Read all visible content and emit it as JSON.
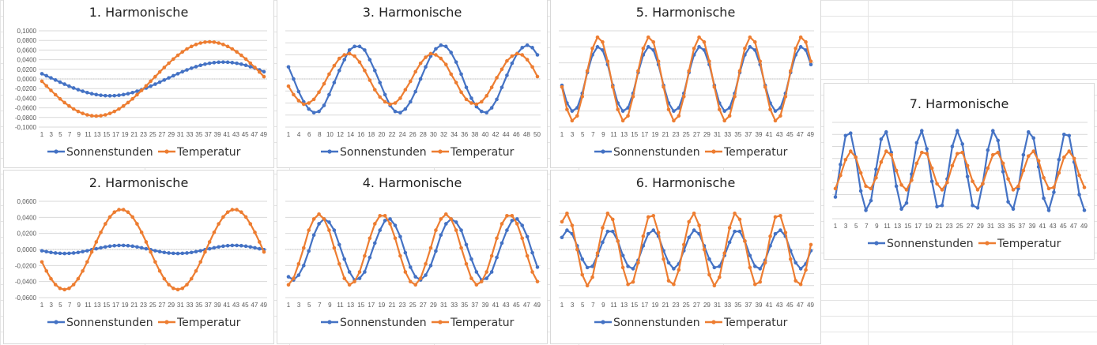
{
  "colors": {
    "series_1": "#4472C4",
    "series_2": "#ED7D31",
    "grid": "#d9d9d9",
    "axis_text": "#595959"
  },
  "chart_data": [
    {
      "type": "line",
      "title": "1. Harmonische",
      "ylim": [
        -0.1,
        0.1
      ],
      "y_tick_step": 0.02,
      "y_tick_labels": [
        "0,1000",
        "0,0800",
        "0,0600",
        "0,0400",
        "0,0200",
        "0,0000",
        "-0,0200",
        "-0,0400",
        "-0,0600",
        "-0,0800",
        "-0,1000"
      ],
      "x_tick_labels": [
        "1",
        "3",
        "5",
        "7",
        "9",
        "11",
        "13",
        "15",
        "17",
        "19",
        "21",
        "23",
        "25",
        "27",
        "29",
        "31",
        "33",
        "35",
        "37",
        "39",
        "41",
        "43",
        "45",
        "47",
        "49"
      ],
      "grid": true,
      "legend": "bottom",
      "series": [
        {
          "name": "Sonnenstunden",
          "values": [
            0.0108,
            0.0066,
            0.0022,
            -0.0022,
            -0.0066,
            -0.0108,
            -0.0149,
            -0.0188,
            -0.0223,
            -0.0255,
            -0.0283,
            -0.0307,
            -0.0325,
            -0.0339,
            -0.0347,
            -0.035,
            -0.0347,
            -0.0339,
            -0.0325,
            -0.0307,
            -0.0283,
            -0.0255,
            -0.0223,
            -0.0188,
            -0.0149,
            -0.0108,
            -0.0066,
            -0.0022,
            0.0022,
            0.0066,
            0.0108,
            0.0149,
            0.0188,
            0.0223,
            0.0255,
            0.0283,
            0.0307,
            0.0325,
            0.0339,
            0.0347,
            0.035,
            0.0347,
            0.0339,
            0.0325,
            0.0307,
            0.0283,
            0.0255,
            0.0223,
            0.0188,
            0.0149
          ]
        },
        {
          "name": "Temperatur",
          "values": [
            -0.0048,
            -0.0144,
            -0.0238,
            -0.0328,
            -0.0413,
            -0.0491,
            -0.0561,
            -0.0623,
            -0.0675,
            -0.0716,
            -0.0746,
            -0.0764,
            -0.077,
            -0.0764,
            -0.0746,
            -0.0716,
            -0.0675,
            -0.0623,
            -0.0561,
            -0.0491,
            -0.0413,
            -0.0328,
            -0.0238,
            -0.0144,
            -0.0048,
            0.0048,
            0.0144,
            0.0238,
            0.0328,
            0.0413,
            0.0491,
            0.0561,
            0.0623,
            0.0675,
            0.0716,
            0.0746,
            0.0764,
            0.077,
            0.0764,
            0.0746,
            0.0716,
            0.0675,
            0.0623,
            0.0561,
            0.0491,
            0.0413,
            0.0328,
            0.0238,
            0.0144,
            0.0048
          ]
        }
      ]
    },
    {
      "type": "line",
      "title": "2. Harmonische",
      "ylim": [
        -0.06,
        0.06
      ],
      "y_tick_step": 0.02,
      "y_tick_labels": [
        "0,0600",
        "0,0400",
        "0,0200",
        "0,0000",
        "-0,0200",
        "-0,0400",
        "-0,0600"
      ],
      "x_tick_labels": [
        "1",
        "3",
        "5",
        "7",
        "9",
        "11",
        "13",
        "15",
        "17",
        "19",
        "21",
        "23",
        "25",
        "27",
        "29",
        "31",
        "33",
        "35",
        "37",
        "39",
        "41",
        "43",
        "45",
        "47",
        "49"
      ],
      "grid": true,
      "legend": "bottom",
      "series": [
        {
          "name": "Sonnenstunden",
          "values": [
            -0.0016,
            -0.0027,
            -0.0037,
            -0.0044,
            -0.0048,
            -0.005,
            -0.0048,
            -0.0044,
            -0.0037,
            -0.0027,
            -0.0016,
            -0.0003,
            0.0009,
            0.0021,
            0.0032,
            0.0041,
            0.0047,
            0.005,
            0.005,
            0.0047,
            0.0041,
            0.0032,
            0.0021,
            0.0009,
            -0.0003,
            -0.0016,
            -0.0027,
            -0.0037,
            -0.0044,
            -0.0048,
            -0.005,
            -0.0048,
            -0.0044,
            -0.0037,
            -0.0027,
            -0.0016,
            -0.0003,
            0.0009,
            0.0021,
            0.0032,
            0.0041,
            0.0047,
            0.005,
            0.005,
            0.0047,
            0.0041,
            0.0032,
            0.0021,
            0.0009,
            -0.0003
          ]
        },
        {
          "name": "Temperatur",
          "values": [
            -0.0155,
            -0.0268,
            -0.0365,
            -0.0438,
            -0.0484,
            -0.05,
            -0.0484,
            -0.0438,
            -0.0365,
            -0.0268,
            -0.0155,
            -0.0031,
            0.0094,
            0.0213,
            0.0319,
            0.0405,
            0.0465,
            0.0496,
            0.0496,
            0.0465,
            0.0405,
            0.0319,
            0.0213,
            0.0094,
            -0.0031,
            -0.0155,
            -0.0268,
            -0.0365,
            -0.0438,
            -0.0484,
            -0.05,
            -0.0484,
            -0.0438,
            -0.0365,
            -0.0268,
            -0.0155,
            -0.0031,
            0.0094,
            0.0213,
            0.0319,
            0.0405,
            0.0465,
            0.0496,
            0.0496,
            0.0465,
            0.0405,
            0.0319,
            0.0213,
            0.0094,
            -0.0031
          ]
        }
      ]
    },
    {
      "type": "line",
      "title": "3. Harmonische",
      "ylim": [
        -4,
        4
      ],
      "y_tick_step": 1,
      "y_tick_labels": [],
      "x_tick_labels": [
        "1",
        "4",
        "6",
        "8",
        "10",
        "12",
        "14",
        "16",
        "18",
        "20",
        "22",
        "24",
        "26",
        "28",
        "30",
        "32",
        "34",
        "36",
        "38",
        "40",
        "42",
        "44",
        "46",
        "48",
        "50"
      ],
      "grid": true,
      "legend": "bottom",
      "series": [
        {
          "name": "Sonnenstunden",
          "values": [
            1.0,
            0.0,
            -1.05,
            -1.9,
            -2.5,
            -2.8,
            -2.7,
            -2.2,
            -1.3,
            -0.3,
            0.7,
            1.6,
            2.4,
            2.7,
            2.7,
            2.4,
            1.6,
            0.7,
            -0.3,
            -1.3,
            -2.2,
            -2.7,
            -2.8,
            -2.5,
            -1.9,
            -1.05,
            0.0,
            1.0,
            1.9,
            2.5,
            2.8,
            2.7,
            2.2,
            1.4,
            0.4,
            -0.7,
            -1.6,
            -2.3,
            -2.7,
            -2.8,
            -2.4,
            -1.7,
            -0.7,
            0.3,
            1.3,
            2.1,
            2.6,
            2.8,
            2.6,
            2.0
          ]
        },
        {
          "name": "Temperatur",
          "values": [
            -0.6,
            -1.3,
            -1.8,
            -2.1,
            -2.0,
            -1.7,
            -1.1,
            -0.4,
            0.4,
            1.1,
            1.7,
            2.0,
            2.1,
            1.9,
            1.4,
            0.7,
            -0.1,
            -0.9,
            -1.5,
            -1.9,
            -2.1,
            -2.0,
            -1.6,
            -0.9,
            -0.2,
            0.6,
            1.3,
            1.8,
            2.1,
            2.0,
            1.7,
            1.2,
            0.4,
            -0.3,
            -1.1,
            -1.7,
            -2.0,
            -2.1,
            -1.9,
            -1.4,
            -0.7,
            0.1,
            0.8,
            1.5,
            1.9,
            2.1,
            2.0,
            1.6,
            1.0,
            0.2
          ]
        }
      ]
    },
    {
      "type": "line",
      "title": "4. Harmonische",
      "ylim": [
        -3,
        3
      ],
      "y_tick_step": 1,
      "y_tick_labels": [],
      "x_tick_labels": [
        "1",
        "3",
        "5",
        "7",
        "9",
        "11",
        "13",
        "15",
        "17",
        "19",
        "21",
        "23",
        "25",
        "27",
        "29",
        "31",
        "33",
        "35",
        "37",
        "39",
        "41",
        "43",
        "45",
        "47",
        "49"
      ],
      "grid": true,
      "legend": "bottom",
      "series": [
        {
          "name": "Sonnenstunden",
          "values": [
            -1.7,
            -1.9,
            -1.6,
            -1.0,
            -0.1,
            0.9,
            1.6,
            1.9,
            1.7,
            1.2,
            0.3,
            -0.6,
            -1.4,
            -1.9,
            -1.8,
            -1.4,
            -0.5,
            0.4,
            1.2,
            1.8,
            1.9,
            1.5,
            0.8,
            -0.2,
            -1.1,
            -1.7,
            -1.9,
            -1.6,
            -1.0,
            -0.1,
            0.9,
            1.6,
            1.9,
            1.7,
            1.2,
            0.3,
            -0.6,
            -1.4,
            -1.9,
            -1.8,
            -1.4,
            -0.5,
            0.4,
            1.2,
            1.8,
            1.9,
            1.5,
            0.8,
            -0.2,
            -1.1
          ]
        },
        {
          "name": "Temperatur",
          "values": [
            -2.2,
            -1.8,
            -0.9,
            0.1,
            1.2,
            1.9,
            2.2,
            1.9,
            1.2,
            0.1,
            -0.9,
            -1.8,
            -2.2,
            -2.0,
            -1.4,
            -0.4,
            0.7,
            1.6,
            2.1,
            2.1,
            1.6,
            0.7,
            -0.4,
            -1.4,
            -2.0,
            -2.2,
            -1.8,
            -0.9,
            0.1,
            1.2,
            1.9,
            2.2,
            1.9,
            1.2,
            0.1,
            -0.9,
            -1.8,
            -2.2,
            -2.0,
            -1.4,
            -0.4,
            0.7,
            1.6,
            2.1,
            2.1,
            1.6,
            0.7,
            -0.4,
            -1.4,
            -2.0
          ]
        }
      ]
    },
    {
      "type": "line",
      "title": "5. Harmonische",
      "ylim": [
        -3,
        3
      ],
      "y_tick_step": 1,
      "y_tick_labels": [],
      "x_tick_labels": [
        "1",
        "3",
        "5",
        "7",
        "9",
        "11",
        "13",
        "15",
        "17",
        "19",
        "21",
        "23",
        "25",
        "27",
        "29",
        "31",
        "33",
        "35",
        "37",
        "39",
        "41",
        "43",
        "45",
        "47",
        "49"
      ],
      "grid": true,
      "legend": "bottom",
      "series": [
        {
          "name": "Sonnenstunden",
          "values": [
            -0.4,
            -1.5,
            -2.0,
            -1.8,
            -0.9,
            0.4,
            1.5,
            2.0,
            1.8,
            0.9,
            -0.4,
            -1.5,
            -2.0,
            -1.8,
            -0.9,
            0.4,
            1.5,
            2.0,
            1.8,
            0.9,
            -0.4,
            -1.5,
            -2.0,
            -1.8,
            -0.9,
            0.4,
            1.5,
            2.0,
            1.8,
            0.9,
            -0.4,
            -1.5,
            -2.0,
            -1.8,
            -0.9,
            0.4,
            1.5,
            2.0,
            1.8,
            0.9,
            -0.4,
            -1.5,
            -2.0,
            -1.8,
            -0.9,
            0.4,
            1.5,
            2.0,
            1.8,
            0.9
          ]
        },
        {
          "name": "Temperatur",
          "values": [
            -0.5,
            -1.9,
            -2.6,
            -2.3,
            -1.1,
            0.5,
            1.9,
            2.6,
            2.3,
            1.1,
            -0.5,
            -1.9,
            -2.6,
            -2.3,
            -1.1,
            0.5,
            1.9,
            2.6,
            2.3,
            1.1,
            -0.5,
            -1.9,
            -2.6,
            -2.3,
            -1.1,
            0.5,
            1.9,
            2.6,
            2.3,
            1.1,
            -0.5,
            -1.9,
            -2.6,
            -2.3,
            -1.1,
            0.5,
            1.9,
            2.6,
            2.3,
            1.1,
            -0.5,
            -1.9,
            -2.6,
            -2.3,
            -1.1,
            0.5,
            1.9,
            2.6,
            2.3,
            1.1
          ]
        }
      ]
    },
    {
      "type": "line",
      "title": "6. Harmonische",
      "ylim": [
        -4,
        4
      ],
      "y_tick_step": 1,
      "y_tick_labels": [],
      "x_tick_labels": [
        "1",
        "3",
        "5",
        "7",
        "9",
        "11",
        "13",
        "15",
        "17",
        "19",
        "21",
        "23",
        "25",
        "27",
        "29",
        "31",
        "33",
        "35",
        "37",
        "39",
        "41",
        "43",
        "45",
        "47",
        "49"
      ],
      "grid": true,
      "legend": "bottom",
      "series": [
        {
          "name": "Sonnenstunden",
          "values": [
            1.0,
            1.6,
            1.3,
            0.3,
            -0.8,
            -1.5,
            -1.4,
            -0.5,
            0.6,
            1.5,
            1.5,
            0.7,
            -0.5,
            -1.4,
            -1.6,
            -0.9,
            0.3,
            1.3,
            1.6,
            1.1,
            -0.1,
            -1.1,
            -1.6,
            -1.2,
            -0.1,
            1.0,
            1.6,
            1.3,
            0.3,
            -0.8,
            -1.5,
            -1.4,
            -0.5,
            0.6,
            1.5,
            1.5,
            0.7,
            -0.5,
            -1.4,
            -1.6,
            -0.9,
            0.3,
            1.3,
            1.6,
            1.1,
            -0.1,
            -1.1,
            -1.6,
            -1.2,
            -0.1
          ]
        },
        {
          "name": "Temperatur",
          "values": [
            2.3,
            3.0,
            2.0,
            0.0,
            -2.1,
            -3.0,
            -2.3,
            -0.3,
            1.8,
            3.0,
            2.5,
            0.7,
            -1.5,
            -2.9,
            -2.7,
            -1.1,
            1.1,
            2.7,
            2.8,
            1.4,
            -0.8,
            -2.6,
            -2.9,
            -1.7,
            0.4,
            2.3,
            3.0,
            2.0,
            0.0,
            -2.1,
            -3.0,
            -2.3,
            -0.3,
            1.8,
            3.0,
            2.5,
            0.7,
            -1.5,
            -2.9,
            -2.7,
            -1.1,
            1.1,
            2.7,
            2.8,
            1.4,
            -0.8,
            -2.6,
            -2.9,
            -1.7,
            0.4
          ]
        }
      ]
    },
    {
      "type": "line",
      "title": "7. Harmonische",
      "ylim": [
        -4,
        4
      ],
      "y_tick_step": 1,
      "y_tick_labels": [],
      "x_tick_labels": [
        "1",
        "3",
        "5",
        "7",
        "9",
        "11",
        "13",
        "15",
        "17",
        "19",
        "21",
        "23",
        "25",
        "27",
        "29",
        "31",
        "33",
        "35",
        "37",
        "39",
        "41",
        "43",
        "45",
        "47",
        "49"
      ],
      "grid": true,
      "legend": "bottom",
      "series": [
        {
          "name": "Sonnenstunden",
          "values": [
            -2.2,
            0.5,
            2.9,
            3.1,
            1.1,
            -1.7,
            -3.3,
            -2.5,
            0.1,
            2.6,
            3.2,
            1.5,
            -1.3,
            -3.2,
            -2.7,
            -0.3,
            2.3,
            3.3,
            1.8,
            -0.9,
            -3.0,
            -2.9,
            -0.7,
            2.0,
            3.3,
            2.2,
            -0.5,
            -2.9,
            -3.1,
            -1.1,
            1.7,
            3.3,
            2.5,
            -0.1,
            -2.6,
            -3.2,
            -1.5,
            1.3,
            3.2,
            2.7,
            0.3,
            -2.3,
            -3.3,
            -1.8,
            0.9,
            3.0,
            2.9,
            0.7,
            -2.0,
            -3.3
          ]
        },
        {
          "name": "Temperatur",
          "values": [
            -1.5,
            -0.4,
            0.9,
            1.6,
            1.1,
            -0.2,
            -1.3,
            -1.5,
            -0.6,
            0.7,
            1.6,
            1.3,
            0.0,
            -1.2,
            -1.6,
            -0.8,
            0.6,
            1.5,
            1.4,
            0.2,
            -1.1,
            -1.6,
            -1.0,
            0.4,
            1.4,
            1.5,
            0.4,
            -0.9,
            -1.6,
            -1.1,
            0.2,
            1.3,
            1.5,
            0.6,
            -0.7,
            -1.6,
            -1.3,
            0.0,
            1.2,
            1.6,
            0.8,
            -0.6,
            -1.5,
            -1.4,
            -0.2,
            1.1,
            1.6,
            1.0,
            -0.4,
            -1.4
          ]
        }
      ]
    }
  ]
}
